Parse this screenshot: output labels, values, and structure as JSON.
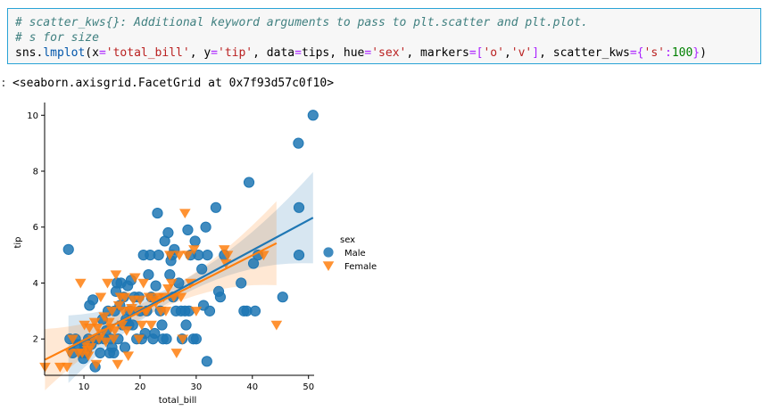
{
  "cell": {
    "comment_line1": "# scatter_kws{}: Additional keyword arguments to pass to plt.scatter and plt.plot.",
    "comment_line2": "# s for size",
    "code_line": "sns.lmplot(x='total_bill', y='tip', data=tips, hue='sex', markers=['o','v'], scatter_kws={'s':100})"
  },
  "output": {
    "prompt": ":",
    "repr_text": "<seaborn.axisgrid.FacetGrid at 0x7f93d57c0f10>"
  },
  "chart_data": {
    "type": "scatter",
    "xlabel": "total_bill",
    "ylabel": "tip",
    "xlim": [
      3,
      51
    ],
    "ylim": [
      0.7,
      10.2
    ],
    "xticks": [
      10,
      20,
      30,
      40,
      50
    ],
    "yticks": [
      2,
      4,
      6,
      8,
      10
    ],
    "grid": false,
    "legend": {
      "title": "sex",
      "placement": "right",
      "entries": [
        "Male",
        "Female"
      ]
    },
    "series": [
      {
        "name": "Male",
        "color": "#1f77b4",
        "marker": "circle",
        "regression": {
          "intercept": 0.85,
          "slope": 0.108,
          "x_range": [
            7.25,
            50.81
          ]
        },
        "points": [
          [
            7.25,
            5.2
          ],
          [
            7.5,
            2.0
          ],
          [
            8.0,
            1.5
          ],
          [
            8.5,
            2.0
          ],
          [
            9.0,
            1.8
          ],
          [
            9.6,
            1.5
          ],
          [
            9.9,
            1.3
          ],
          [
            10.1,
            1.8
          ],
          [
            10.3,
            1.5
          ],
          [
            10.5,
            1.6
          ],
          [
            10.8,
            2.0
          ],
          [
            11.0,
            3.2
          ],
          [
            11.3,
            1.8
          ],
          [
            11.6,
            3.4
          ],
          [
            12.0,
            1.0
          ],
          [
            12.2,
            2.0
          ],
          [
            12.6,
            2.0
          ],
          [
            12.9,
            1.5
          ],
          [
            13.3,
            2.7
          ],
          [
            13.6,
            2.0
          ],
          [
            14.0,
            2.3
          ],
          [
            14.3,
            3.0
          ],
          [
            14.6,
            1.5
          ],
          [
            14.8,
            2.0
          ],
          [
            15.0,
            1.7
          ],
          [
            15.3,
            1.5
          ],
          [
            15.5,
            3.0
          ],
          [
            15.7,
            3.7
          ],
          [
            15.9,
            4.0
          ],
          [
            16.1,
            2.0
          ],
          [
            16.4,
            3.2
          ],
          [
            16.6,
            4.0
          ],
          [
            16.9,
            2.5
          ],
          [
            17.1,
            3.5
          ],
          [
            17.3,
            1.7
          ],
          [
            17.5,
            2.7
          ],
          [
            17.8,
            3.9
          ],
          [
            18.0,
            2.5
          ],
          [
            18.2,
            3.0
          ],
          [
            18.4,
            4.1
          ],
          [
            18.7,
            2.5
          ],
          [
            19.0,
            3.5
          ],
          [
            19.4,
            2.0
          ],
          [
            19.8,
            3.5
          ],
          [
            20.0,
            3.0
          ],
          [
            20.3,
            2.0
          ],
          [
            20.6,
            5.0
          ],
          [
            20.9,
            2.2
          ],
          [
            21.2,
            3.0
          ],
          [
            21.5,
            4.3
          ],
          [
            21.8,
            5.0
          ],
          [
            22.0,
            3.5
          ],
          [
            22.3,
            2.0
          ],
          [
            22.6,
            2.2
          ],
          [
            22.8,
            3.9
          ],
          [
            23.1,
            6.5
          ],
          [
            23.3,
            5.0
          ],
          [
            23.6,
            3.0
          ],
          [
            23.9,
            2.5
          ],
          [
            24.1,
            2.0
          ],
          [
            24.4,
            5.5
          ],
          [
            24.7,
            2.0
          ],
          [
            25.0,
            5.8
          ],
          [
            25.3,
            4.3
          ],
          [
            25.5,
            4.8
          ],
          [
            25.7,
            5.0
          ],
          [
            25.9,
            3.5
          ],
          [
            26.1,
            5.2
          ],
          [
            26.4,
            3.0
          ],
          [
            26.9,
            4.0
          ],
          [
            27.3,
            3.0
          ],
          [
            27.5,
            2.0
          ],
          [
            28.0,
            3.0
          ],
          [
            28.2,
            2.5
          ],
          [
            28.5,
            5.9
          ],
          [
            28.7,
            3.0
          ],
          [
            29.0,
            5.0
          ],
          [
            29.5,
            2.0
          ],
          [
            29.8,
            5.5
          ],
          [
            30.0,
            2.0
          ],
          [
            30.4,
            5.0
          ],
          [
            31.0,
            4.5
          ],
          [
            31.3,
            3.2
          ],
          [
            31.7,
            6.0
          ],
          [
            31.9,
            1.2
          ],
          [
            32.0,
            5.0
          ],
          [
            32.4,
            3.0
          ],
          [
            33.5,
            6.7
          ],
          [
            34.0,
            3.7
          ],
          [
            34.3,
            3.5
          ],
          [
            35.0,
            5.0
          ],
          [
            38.0,
            4.0
          ],
          [
            38.5,
            3.0
          ],
          [
            39.0,
            3.0
          ],
          [
            39.4,
            7.6
          ],
          [
            40.5,
            3.0
          ],
          [
            40.2,
            4.7
          ],
          [
            41.0,
            5.0
          ],
          [
            45.4,
            3.5
          ],
          [
            48.2,
            9.0
          ],
          [
            48.3,
            6.7
          ],
          [
            48.3,
            5.0
          ],
          [
            50.81,
            10.0
          ]
        ]
      },
      {
        "name": "Female",
        "color": "#ff7f0e",
        "marker": "triangle-down",
        "regression": {
          "intercept": 0.95,
          "slope": 0.101,
          "x_range": [
            3.07,
            44.3
          ]
        },
        "points": [
          [
            3.07,
            1.0
          ],
          [
            5.75,
            1.0
          ],
          [
            7.0,
            1.0
          ],
          [
            7.5,
            1.5
          ],
          [
            8.0,
            2.0
          ],
          [
            9.0,
            1.5
          ],
          [
            9.4,
            4.0
          ],
          [
            9.7,
            1.5
          ],
          [
            10.1,
            2.5
          ],
          [
            10.3,
            1.8
          ],
          [
            10.6,
            1.6
          ],
          [
            10.8,
            1.4
          ],
          [
            11.0,
            2.4
          ],
          [
            11.2,
            1.7
          ],
          [
            11.6,
            2.0
          ],
          [
            11.9,
            2.6
          ],
          [
            12.2,
            1.1
          ],
          [
            12.4,
            2.4
          ],
          [
            12.7,
            2.0
          ],
          [
            13.0,
            3.5
          ],
          [
            13.3,
            2.2
          ],
          [
            13.6,
            2.8
          ],
          [
            13.9,
            1.9
          ],
          [
            14.2,
            4.0
          ],
          [
            14.5,
            2.6
          ],
          [
            14.8,
            2.4
          ],
          [
            15.0,
            3.0
          ],
          [
            15.3,
            2.0
          ],
          [
            15.5,
            2.3
          ],
          [
            15.7,
            4.3
          ],
          [
            16.0,
            1.1
          ],
          [
            16.2,
            3.2
          ],
          [
            16.5,
            3.5
          ],
          [
            16.8,
            2.5
          ],
          [
            17.0,
            3.0
          ],
          [
            17.3,
            3.5
          ],
          [
            17.6,
            2.3
          ],
          [
            17.9,
            1.4
          ],
          [
            18.2,
            3.0
          ],
          [
            18.5,
            3.1
          ],
          [
            18.8,
            3.4
          ],
          [
            19.1,
            4.2
          ],
          [
            19.5,
            3.0
          ],
          [
            19.8,
            2.0
          ],
          [
            20.0,
            3.4
          ],
          [
            20.3,
            2.5
          ],
          [
            20.6,
            4.0
          ],
          [
            20.9,
            3.0
          ],
          [
            21.2,
            3.0
          ],
          [
            21.6,
            3.5
          ],
          [
            22.0,
            2.5
          ],
          [
            22.4,
            3.4
          ],
          [
            22.8,
            3.3
          ],
          [
            23.3,
            3.5
          ],
          [
            23.7,
            3.0
          ],
          [
            24.2,
            3.5
          ],
          [
            24.6,
            3.0
          ],
          [
            25.0,
            3.8
          ],
          [
            25.3,
            5.0
          ],
          [
            25.6,
            4.0
          ],
          [
            26.0,
            3.5
          ],
          [
            26.5,
            1.5
          ],
          [
            27.0,
            5.0
          ],
          [
            27.3,
            3.5
          ],
          [
            27.6,
            2.0
          ],
          [
            28.0,
            6.5
          ],
          [
            28.5,
            5.0
          ],
          [
            29.0,
            4.0
          ],
          [
            29.6,
            5.2
          ],
          [
            30.0,
            3.0
          ],
          [
            35.0,
            5.2
          ],
          [
            35.3,
            4.7
          ],
          [
            35.6,
            5.0
          ],
          [
            42.0,
            5.0
          ],
          [
            44.3,
            2.5
          ]
        ]
      }
    ]
  }
}
